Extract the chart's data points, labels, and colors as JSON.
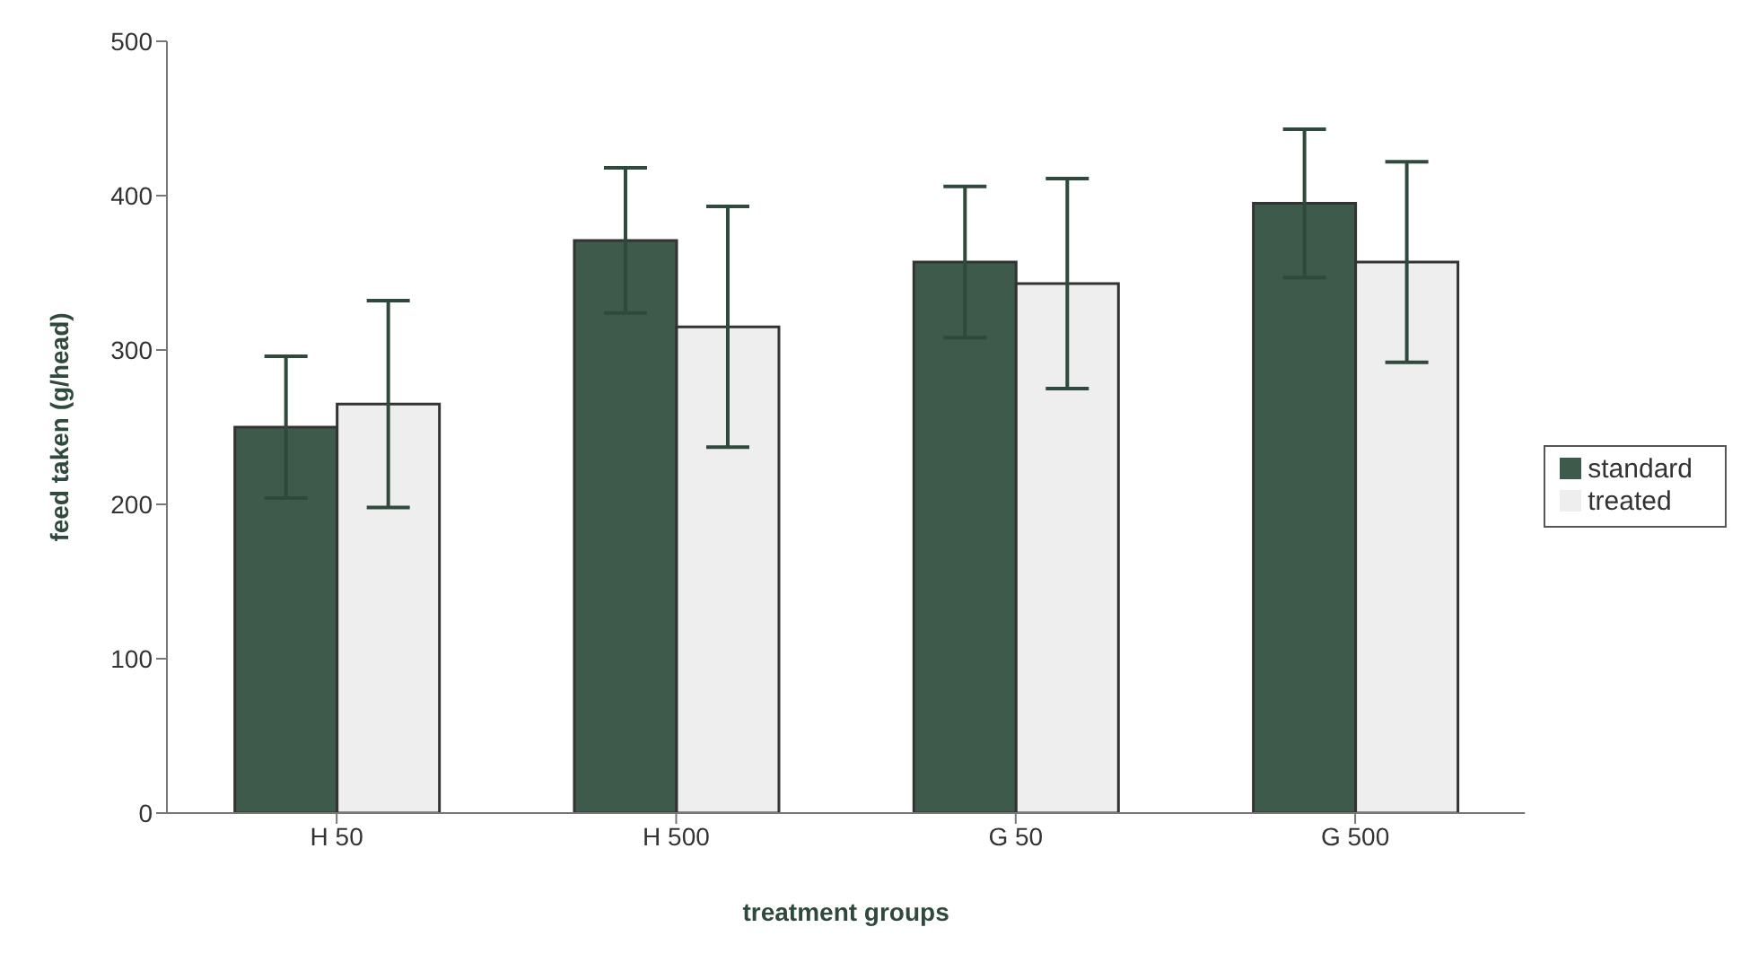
{
  "chart_data": {
    "type": "bar",
    "xlabel": "treatment groups",
    "ylabel": "feed taken (g/head)",
    "categories": [
      "H 50",
      "H 500",
      "G 50",
      "G 500"
    ],
    "series": [
      {
        "name": "standard",
        "color": "#3d5a4a",
        "values": [
          250,
          371,
          357,
          395
        ],
        "errors": [
          46,
          47,
          49,
          48
        ]
      },
      {
        "name": "treated",
        "color": "#eeeeee",
        "values": [
          265,
          315,
          343,
          357
        ],
        "errors": [
          67,
          78,
          68,
          65
        ]
      }
    ],
    "ylim": [
      0,
      500
    ],
    "yticks": [
      0,
      100,
      200,
      300,
      400,
      500
    ],
    "grid": false,
    "legend": "right"
  }
}
